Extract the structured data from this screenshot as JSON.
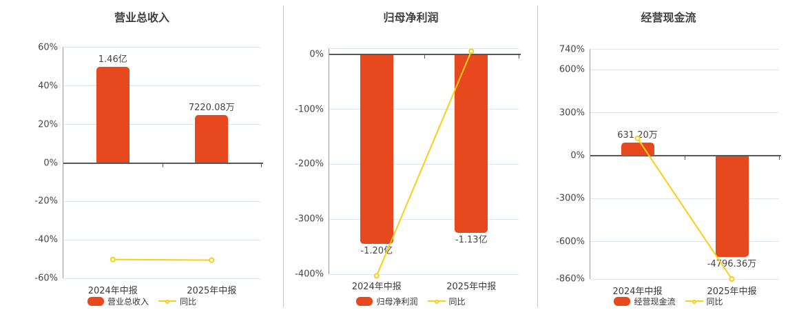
{
  "colors": {
    "bar": "#E8481E",
    "line": "#F8CF16",
    "grid": "#DCE5F0",
    "zero_line": "#575757",
    "axis_line": "#999999",
    "divider": "#CBCBCB",
    "text": "#464646",
    "title": "#3F3F3F"
  },
  "chart_data": [
    {
      "type": "bar+line",
      "title": "营业总收入",
      "categories": [
        "2024年中报",
        "2025年中报"
      ],
      "ymin": -60,
      "ymax": 60,
      "grid": true,
      "legend_position": "bottom",
      "yticks": [
        {
          "value": 60,
          "label": "60%"
        },
        {
          "value": 40,
          "label": "40%"
        },
        {
          "value": 20,
          "label": "20%"
        },
        {
          "value": 0,
          "label": "0%"
        },
        {
          "value": -20,
          "label": "-20%"
        },
        {
          "value": -40,
          "label": "-40%"
        },
        {
          "value": -60,
          "label": "-60%"
        }
      ],
      "bar_series": {
        "name": "营业总收入",
        "value_labels": [
          "1.46亿",
          "7220.08万"
        ],
        "plotted_pct": [
          50,
          25
        ]
      },
      "line_series": {
        "name": "同比",
        "values_pct": [
          -50.2,
          -50.55
        ]
      }
    },
    {
      "type": "bar+line",
      "title": "归母净利润",
      "categories": [
        "2024年中报",
        "2025年中报"
      ],
      "ymin": -400,
      "ymax": 10,
      "grid": true,
      "legend_position": "bottom",
      "yticks": [
        {
          "value": 0,
          "label": "0%"
        },
        {
          "value": -100,
          "label": "-100%"
        },
        {
          "value": -200,
          "label": "-200%"
        },
        {
          "value": -300,
          "label": "-300%"
        },
        {
          "value": -400,
          "label": "-400%"
        }
      ],
      "bar_series": {
        "name": "归母净利润",
        "value_labels": [
          "-1.20亿",
          "-1.13亿"
        ],
        "plotted_pct": [
          -344,
          -324
        ]
      },
      "line_series": {
        "name": "同比",
        "values_pct": [
          -403,
          5.83
        ]
      }
    },
    {
      "type": "bar+line",
      "title": "经营现金流",
      "categories": [
        "2024年中报",
        "2025年中报"
      ],
      "ymin": -860,
      "ymax": 740,
      "grid": true,
      "legend_position": "bottom",
      "yticks": [
        {
          "value": 740,
          "label": "740%"
        },
        {
          "value": 600,
          "label": "600%"
        },
        {
          "value": 300,
          "label": "300%"
        },
        {
          "value": 0,
          "label": "0%"
        },
        {
          "value": -300,
          "label": "-300%"
        },
        {
          "value": -600,
          "label": "-600%"
        },
        {
          "value": -860,
          "label": "-860%"
        }
      ],
      "bar_series": {
        "name": "经营现金流",
        "value_labels": [
          "631.20万",
          "-4796.36万"
        ],
        "plotted_pct": [
          92,
          -702
        ]
      },
      "line_series": {
        "name": "同比",
        "values_pct": [
          121,
          -860
        ]
      }
    }
  ]
}
